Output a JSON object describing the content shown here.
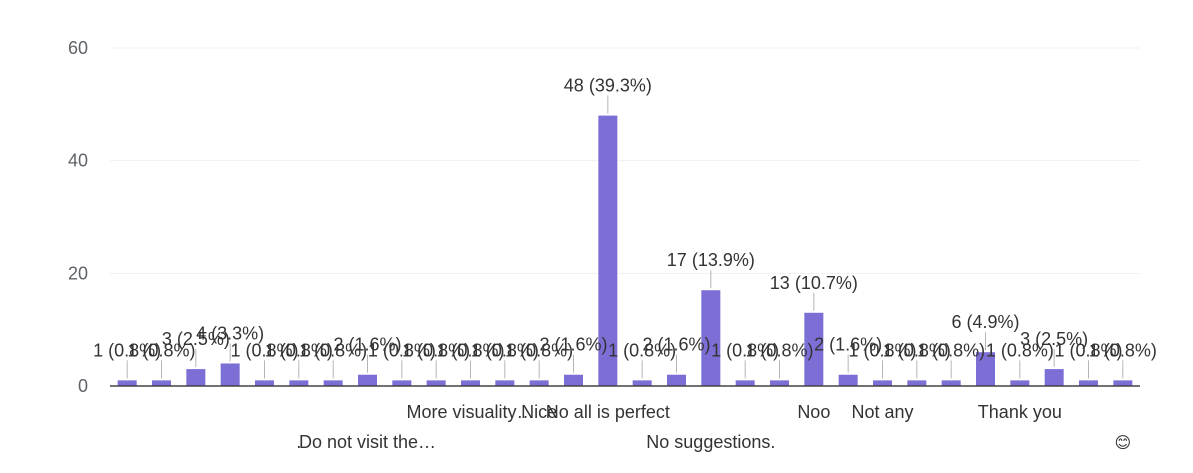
{
  "chart_data": {
    "type": "bar",
    "ylim": [
      0,
      60
    ],
    "yticks": [
      0,
      20,
      40,
      60
    ],
    "grid": true,
    "bar_color": "#7b6fd6",
    "categories": [
      "",
      "",
      "",
      "",
      "",
      ".",
      "",
      "Do not visit the…",
      "",
      "",
      "More visuality…",
      "",
      "Nice",
      "",
      "No all is perfect",
      "",
      "",
      "No suggestions.",
      "",
      "",
      "Noo",
      "",
      "Not any",
      "",
      "",
      "",
      "Thank you",
      "",
      "",
      "😊"
    ],
    "values": [
      1,
      1,
      3,
      4,
      1,
      1,
      1,
      2,
      1,
      1,
      1,
      1,
      1,
      2,
      48,
      1,
      2,
      17,
      1,
      1,
      13,
      2,
      1,
      1,
      1,
      6,
      1,
      3,
      1,
      1
    ],
    "labels": [
      "1 (0.8%)",
      "1 (0.8%)",
      "3 (2.5%)",
      "4 (3.3%)",
      "1 (0.8%)",
      "1 (0.8%)",
      "1 (0.8%)",
      "2 (1.6%)",
      "1 (0.8%)",
      "1 (0.8%)",
      "1 (0.8%)",
      "1 (0.8%)",
      "1 (0.8%)",
      "2 (1.6%)",
      "48 (39.3%)",
      "1 (0.8%)",
      "2 (1.6%)",
      "17 (13.9%)",
      "1 (0.8%)",
      "1 (0.8%)",
      "13 (10.7%)",
      "2 (1.6%)",
      "1 (0.8%)",
      "1 (0.8%)",
      "1 (0.8%)",
      "6 (4.9%)",
      "1 (0.8%)",
      "3 (2.5%)",
      "1 (0.8%)",
      "1 (0.8%)"
    ]
  }
}
